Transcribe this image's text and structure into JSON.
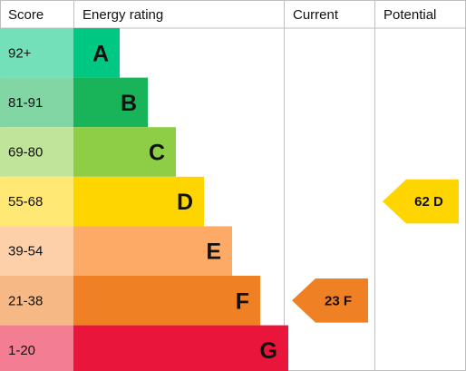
{
  "chart_data": {
    "type": "bar",
    "headers": {
      "score": "Score",
      "rating": "Energy rating",
      "current": "Current",
      "potential": "Potential"
    },
    "bands": [
      {
        "range": "92+",
        "letter": "A",
        "color": "#00c781"
      },
      {
        "range": "81-91",
        "letter": "B",
        "color": "#19b459"
      },
      {
        "range": "69-80",
        "letter": "C",
        "color": "#8dce46"
      },
      {
        "range": "55-68",
        "letter": "D",
        "color": "#ffd500"
      },
      {
        "range": "39-54",
        "letter": "E",
        "color": "#fcaa65"
      },
      {
        "range": "21-38",
        "letter": "F",
        "color": "#ef8023"
      },
      {
        "range": "1-20",
        "letter": "G",
        "color": "#e9153b"
      }
    ],
    "current": {
      "value": 23,
      "letter": "F",
      "label": "23 F",
      "color": "#ef8023"
    },
    "potential": {
      "value": 62,
      "letter": "D",
      "label": "62 D",
      "color": "#ffd500"
    }
  }
}
